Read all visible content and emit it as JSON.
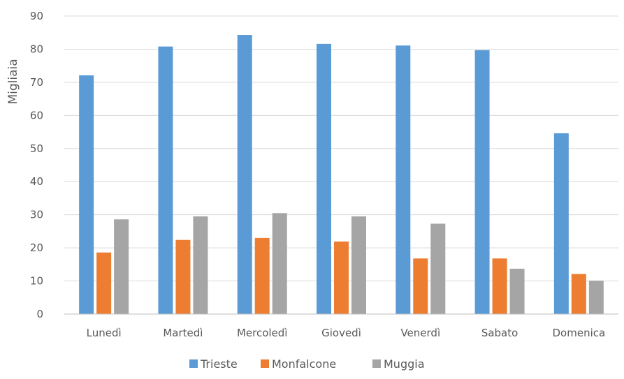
{
  "chart_data": {
    "type": "bar",
    "title": "",
    "xlabel": "",
    "ylabel": "Migliaia",
    "ylim": [
      0,
      90
    ],
    "yticks": [
      0,
      10,
      20,
      30,
      40,
      50,
      60,
      70,
      80,
      90
    ],
    "grid": true,
    "legend_position": "bottom",
    "categories": [
      "Lunedì",
      "Martedì",
      "Mercoledì",
      "Giovedì",
      "Venerdì",
      "Sabato",
      "Domenica"
    ],
    "series": [
      {
        "name": "Trieste",
        "color": "#5B9BD5",
        "values": [
          72.1,
          80.8,
          84.3,
          81.6,
          81.1,
          79.7,
          54.6
        ]
      },
      {
        "name": "Monfalcone",
        "color": "#ED7D31",
        "values": [
          18.6,
          22.4,
          23.0,
          21.9,
          16.8,
          16.8,
          12.1
        ]
      },
      {
        "name": "Muggia",
        "color": "#A5A5A5",
        "values": [
          28.6,
          29.5,
          30.5,
          29.5,
          27.3,
          13.7,
          10.1
        ]
      }
    ]
  }
}
